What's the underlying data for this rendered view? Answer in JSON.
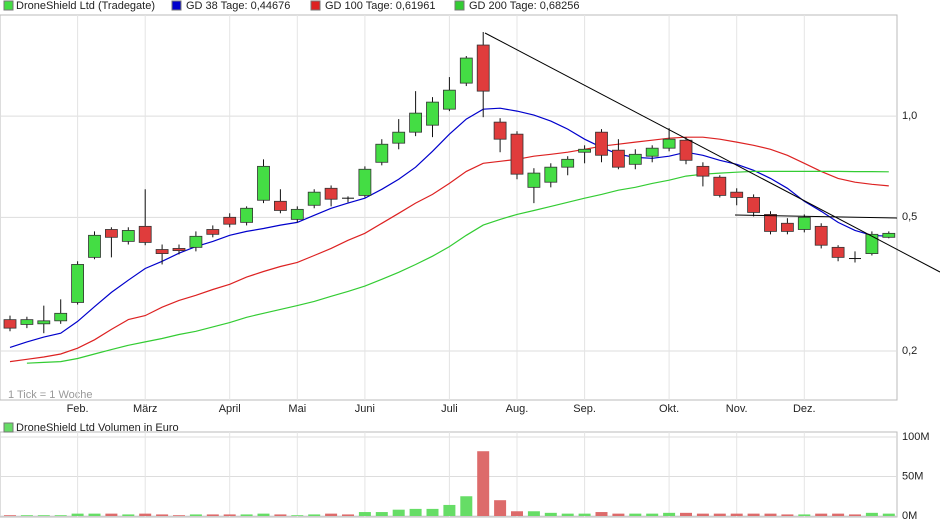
{
  "chart_data": [
    {
      "type": "candlestick",
      "title": "DroneShield Ltd (Tradegate)",
      "note": "1 Tick = 1 Woche",
      "categories": [
        null,
        null,
        null,
        null,
        "Feb.",
        null,
        null,
        null,
        "März",
        null,
        null,
        null,
        null,
        "April",
        null,
        null,
        null,
        "Mai",
        null,
        null,
        null,
        "Juni",
        null,
        null,
        null,
        null,
        "Juli",
        null,
        null,
        null,
        "Aug.",
        null,
        null,
        null,
        "Sep.",
        null,
        null,
        null,
        null,
        "Okt.",
        null,
        null,
        null,
        "Nov.",
        null,
        null,
        null,
        "Dez.",
        null,
        null,
        null,
        null,
        null
      ],
      "open": [
        0.248,
        0.24,
        0.241,
        0.246,
        0.279,
        0.38,
        0.46,
        0.424,
        0.47,
        0.401,
        0.404,
        0.407,
        0.46,
        0.5,
        0.483,
        0.562,
        0.558,
        0.493,
        0.543,
        0.61,
        0.57,
        0.581,
        0.729,
        0.831,
        0.896,
        0.94,
        1.049,
        1.254,
        1.628,
        0.96,
        0.884,
        0.614,
        0.636,
        0.705,
        0.781,
        0.896,
        0.792,
        0.719,
        0.76,
        0.803,
        0.848,
        0.709,
        0.658,
        0.594,
        0.573,
        0.51,
        0.48,
        0.46,
        0.47,
        0.407,
        0.377,
        0.39,
        0.436
      ],
      "high": [
        0.255,
        0.253,
        0.273,
        0.285,
        0.37,
        0.454,
        0.467,
        0.467,
        0.606,
        0.415,
        0.415,
        0.454,
        0.473,
        0.514,
        0.539,
        0.744,
        0.606,
        0.539,
        0.606,
        0.622,
        0.577,
        0.709,
        0.854,
        0.98,
        1.187,
        1.139,
        1.307,
        1.51,
        1.78,
        0.986,
        0.902,
        0.7,
        0.724,
        0.76,
        0.819,
        0.915,
        0.854,
        0.797,
        0.819,
        0.921,
        0.866,
        0.729,
        0.667,
        0.61,
        0.585,
        0.521,
        0.497,
        0.51,
        0.48,
        0.413,
        0.396,
        0.454,
        0.454
      ],
      "low": [
        0.229,
        0.234,
        0.226,
        0.241,
        0.275,
        0.375,
        0.38,
        0.415,
        0.413,
        0.362,
        0.388,
        0.396,
        0.436,
        0.467,
        0.473,
        0.551,
        0.514,
        0.483,
        0.532,
        0.539,
        0.554,
        0.573,
        0.714,
        0.797,
        0.872,
        0.866,
        1.035,
        1.229,
        0.993,
        0.781,
        0.649,
        0.551,
        0.614,
        0.667,
        0.724,
        0.729,
        0.695,
        0.695,
        0.729,
        0.786,
        0.719,
        0.618,
        0.573,
        0.543,
        0.503,
        0.445,
        0.445,
        0.451,
        0.404,
        0.37,
        0.367,
        0.385,
        0.433
      ],
      "close": [
        0.234,
        0.248,
        0.246,
        0.259,
        0.362,
        0.442,
        0.436,
        0.457,
        0.421,
        0.39,
        0.398,
        0.439,
        0.445,
        0.477,
        0.532,
        0.709,
        0.524,
        0.528,
        0.594,
        0.566,
        0.566,
        0.695,
        0.825,
        0.896,
        1.021,
        1.101,
        1.195,
        1.489,
        1.187,
        0.854,
        0.672,
        0.677,
        0.705,
        0.744,
        0.797,
        0.765,
        0.705,
        0.77,
        0.803,
        0.854,
        0.739,
        0.663,
        0.581,
        0.573,
        0.517,
        0.454,
        0.454,
        0.5,
        0.413,
        0.38,
        0.375,
        0.445,
        0.448
      ],
      "up_color": "#44dd44",
      "down_color": "#e03c3c",
      "series": [
        {
          "name": "GD 38 Tage: 0,44676",
          "color": "#0000cc",
          "values": [
            0.205,
            0.213,
            0.22,
            0.226,
            0.245,
            0.271,
            0.299,
            0.325,
            0.352,
            0.37,
            0.391,
            0.409,
            0.424,
            0.442,
            0.454,
            0.463,
            0.474,
            0.483,
            0.507,
            0.532,
            0.551,
            0.57,
            0.606,
            0.649,
            0.705,
            0.786,
            0.884,
            0.98,
            1.049,
            1.056,
            1.035,
            1.007,
            0.967,
            0.915,
            0.854,
            0.808,
            0.77,
            0.754,
            0.749,
            0.76,
            0.781,
            0.765,
            0.739,
            0.719,
            0.69,
            0.653,
            0.61,
            0.558,
            0.521,
            0.483,
            0.457,
            0.442,
            0.439
          ]
        },
        {
          "name": "GD 100 Tage: 0,61961",
          "color": "#dd2222",
          "values": [
            0.186,
            0.189,
            0.192,
            0.196,
            0.204,
            0.216,
            0.232,
            0.248,
            0.255,
            0.27,
            0.283,
            0.293,
            0.305,
            0.316,
            0.332,
            0.345,
            0.357,
            0.367,
            0.385,
            0.404,
            0.427,
            0.448,
            0.48,
            0.514,
            0.551,
            0.585,
            0.631,
            0.685,
            0.724,
            0.734,
            0.744,
            0.76,
            0.77,
            0.781,
            0.797,
            0.814,
            0.825,
            0.837,
            0.848,
            0.86,
            0.866,
            0.866,
            0.854,
            0.837,
            0.819,
            0.797,
            0.765,
            0.724,
            0.685,
            0.653,
            0.636,
            0.627,
            0.62
          ]
        },
        {
          "name": "GD 200 Tage: 0,68256",
          "color": "#33cc33",
          "values": [
            null,
            0.184,
            0.185,
            0.186,
            0.19,
            0.196,
            0.202,
            0.208,
            0.213,
            0.218,
            0.224,
            0.229,
            0.236,
            0.243,
            0.252,
            0.259,
            0.266,
            0.273,
            0.281,
            0.291,
            0.301,
            0.312,
            0.327,
            0.343,
            0.362,
            0.383,
            0.409,
            0.442,
            0.474,
            0.493,
            0.51,
            0.524,
            0.539,
            0.554,
            0.57,
            0.585,
            0.602,
            0.614,
            0.631,
            0.645,
            0.663,
            0.672,
            0.677,
            0.681,
            0.685,
            0.685,
            0.685,
            0.685,
            0.685,
            0.685,
            0.684,
            0.684,
            0.683
          ]
        }
      ],
      "log_scale": true,
      "grid": true,
      "ylim": [
        0.143,
        2.0
      ],
      "yticks": [
        {
          "value": 1.0,
          "label": "1,0"
        },
        {
          "value": 0.5,
          "label": "0,5"
        },
        {
          "value": 0.2,
          "label": "0,2"
        }
      ]
    },
    {
      "type": "bar",
      "title": "DroneShield Ltd Volumen in Euro",
      "values": [
        1000000,
        1000000,
        1000000,
        1000000,
        3000000,
        3000000,
        3000000,
        2000000,
        3000000,
        2000000,
        1000000,
        2000000,
        2000000,
        2000000,
        2000000,
        3000000,
        2000000,
        1000000,
        2000000,
        3000000,
        2000000,
        5000000,
        5000000,
        8000000,
        9000000,
        9000000,
        14000000,
        25000000,
        82000000,
        20000000,
        6000000,
        6000000,
        4000000,
        3000000,
        3000000,
        5000000,
        3000000,
        3000000,
        3000000,
        4000000,
        4000000,
        3000000,
        3000000,
        3000000,
        3000000,
        3000000,
        2000000,
        2000000,
        3000000,
        3000000,
        2000000,
        4000000,
        3000000
      ],
      "up_color": "#66dd66",
      "down_color": "#dd6b6b",
      "grid": true,
      "ylim": [
        0,
        100000000
      ],
      "yticks": [
        {
          "value": 100000000,
          "label": "100M"
        },
        {
          "value": 50000000,
          "label": "50M"
        },
        {
          "value": 0,
          "label": "0M"
        }
      ]
    }
  ]
}
